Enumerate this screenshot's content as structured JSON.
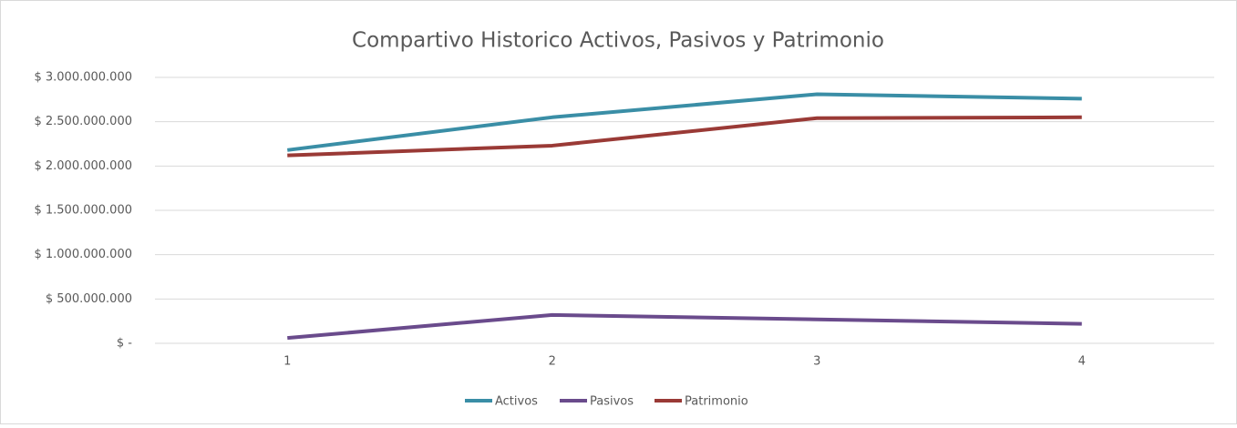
{
  "chart_data": {
    "type": "line",
    "title": "Compartivo Historico Activos, Pasivos y Patrimonio",
    "categories": [
      1,
      2,
      3,
      4
    ],
    "series": [
      {
        "name": "Activos",
        "color": "#3a8ea6",
        "values": [
          2180000000,
          2550000000,
          2810000000,
          2760000000
        ]
      },
      {
        "name": "Pasivos",
        "color": "#6a4b8c",
        "values": [
          60000000,
          320000000,
          270000000,
          220000000
        ]
      },
      {
        "name": "Patrimonio",
        "color": "#9a3a36",
        "values": [
          2120000000,
          2230000000,
          2540000000,
          2550000000
        ]
      }
    ],
    "ylim": [
      0,
      3000000000
    ],
    "yticks": [
      {
        "value": 0,
        "label": "$ -"
      },
      {
        "value": 500000000,
        "label": "$ 500.000.000"
      },
      {
        "value": 1000000000,
        "label": "$ 1.000.000.000"
      },
      {
        "value": 1500000000,
        "label": "$ 1.500.000.000"
      },
      {
        "value": 2000000000,
        "label": "$ 2.000.000.000"
      },
      {
        "value": 2500000000,
        "label": "$ 2.500.000.000"
      },
      {
        "value": 3000000000,
        "label": "$ 3.000.000.000"
      }
    ],
    "grid": true,
    "legend": "bottom"
  }
}
